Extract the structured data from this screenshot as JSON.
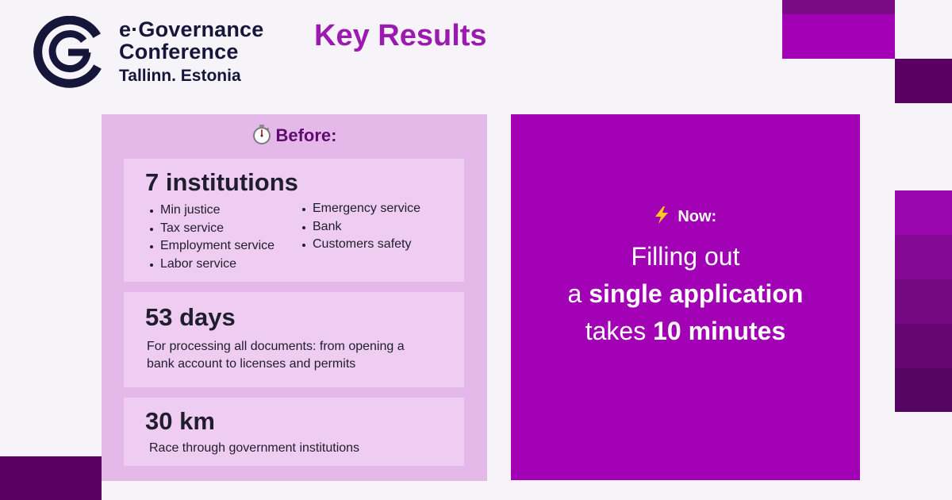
{
  "logo": {
    "line1": "e·Governance",
    "line2": "Conference",
    "line3": "Tallinn. Estonia",
    "icon": "egov-logo-icon",
    "color": "#16163a"
  },
  "title": "Key Results",
  "before": {
    "icon": "stopwatch-icon",
    "heading": "Before:",
    "institutions": {
      "title": "7 institutions",
      "left_items": [
        "Min justice",
        "Tax service",
        "Employment service",
        "Labor service"
      ],
      "right_items": [
        "Emergency service",
        "Bank",
        "Customers safety"
      ]
    },
    "days": {
      "title": "53 days",
      "desc_line1": "For processing all documents: from opening a",
      "desc_line2": "bank account to licenses and permits"
    },
    "distance": {
      "title": "30 km",
      "desc": "Race through government institutions"
    }
  },
  "now": {
    "icon": "lightning-icon",
    "heading": "Now:",
    "line1": "Filling out",
    "line2_pre": "a ",
    "line2_bold": "single application",
    "line3_pre": "takes ",
    "line3_bold": "10 minutes"
  },
  "colors": {
    "background": "#f6f3f9",
    "title": "#9b1ab0",
    "before_panel": "#e5b8ea",
    "before_card": "#efccf1",
    "now_panel": "#a100b5",
    "deco_dark": "#5a0063"
  }
}
